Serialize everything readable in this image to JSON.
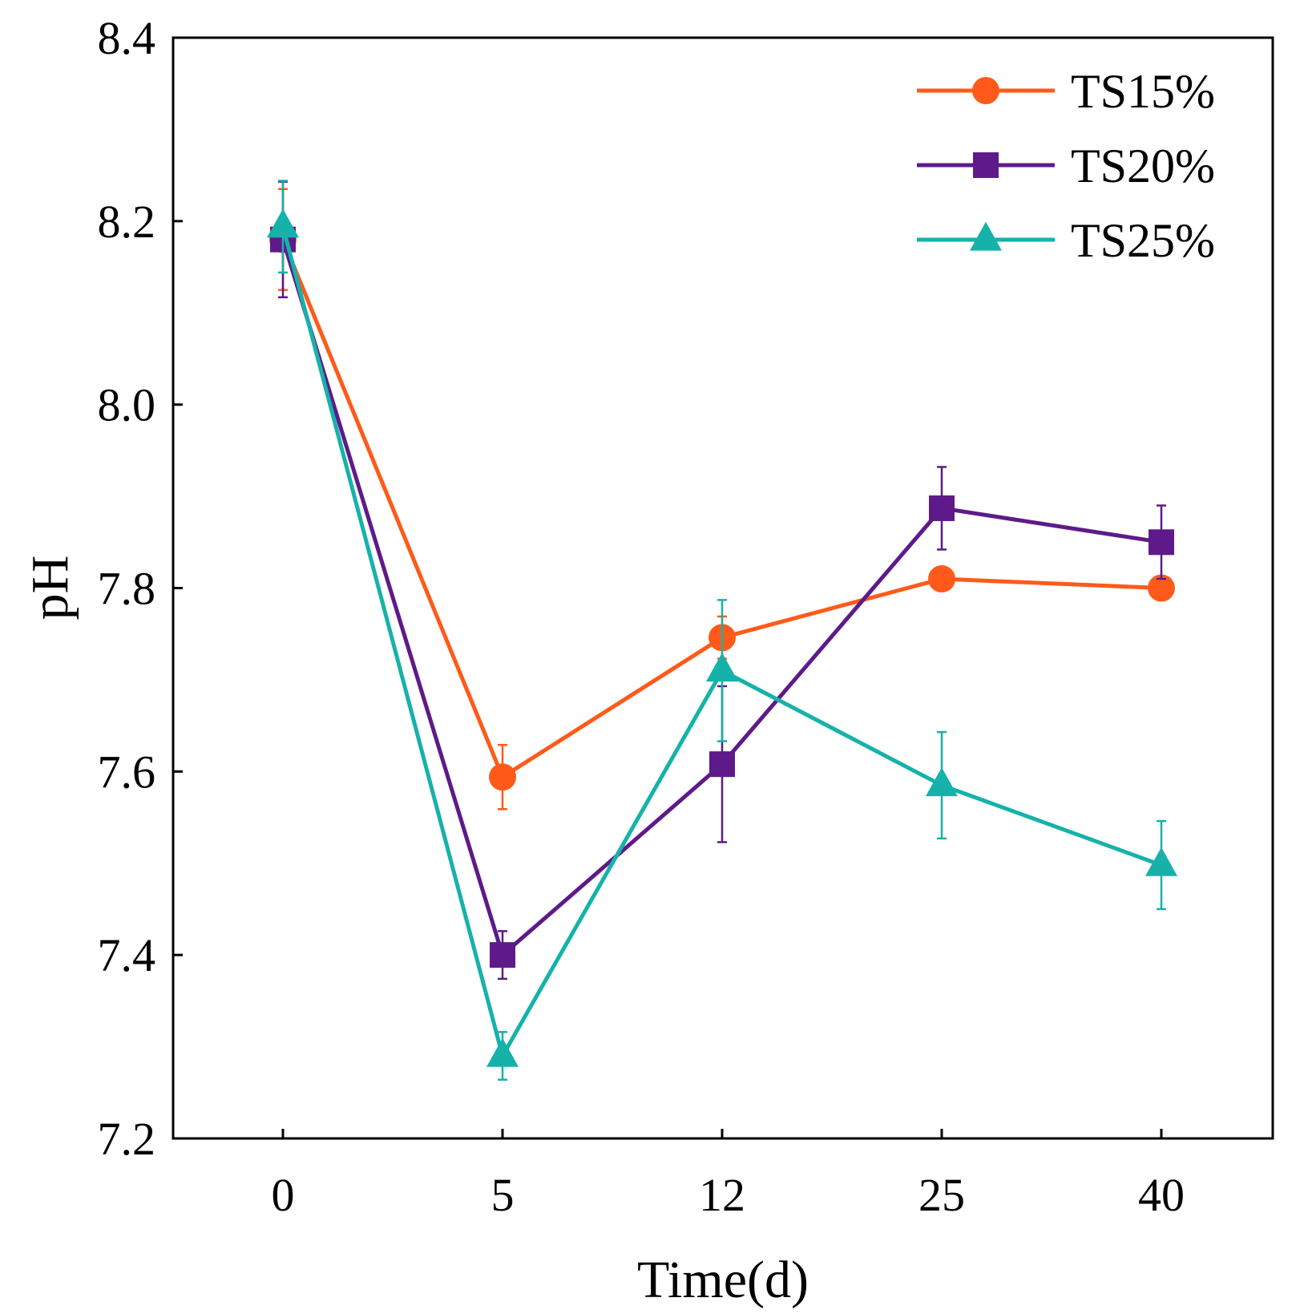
{
  "chart_data": {
    "type": "line",
    "title": "",
    "xlabel": "Time(d)",
    "ylabel": "pH",
    "categories": [
      "0",
      "5",
      "12",
      "25",
      "40"
    ],
    "yticks": [
      "7.2",
      "7.4",
      "7.6",
      "7.8",
      "8.0",
      "8.2",
      "8.4"
    ],
    "ylim": [
      7.2,
      8.4
    ],
    "grid": false,
    "legend_position": "top-right",
    "series": [
      {
        "name": "TS15%",
        "marker": "circle",
        "color": "#ff5a1a",
        "values": [
          8.18,
          7.594,
          7.746,
          7.81,
          7.8
        ],
        "errors": [
          0.055,
          0.035,
          0.023,
          0.01,
          0.01
        ]
      },
      {
        "name": "TS20%",
        "marker": "square",
        "color": "#5e1a8a",
        "values": [
          8.18,
          7.4,
          7.608,
          7.887,
          7.85
        ],
        "errors": [
          0.063,
          0.026,
          0.085,
          0.045,
          0.04
        ]
      },
      {
        "name": "TS25%",
        "marker": "triangle",
        "color": "#16b2aa",
        "values": [
          8.194,
          7.29,
          7.71,
          7.585,
          7.498
        ],
        "errors": [
          0.05,
          0.026,
          0.077,
          0.058,
          0.048
        ]
      }
    ]
  }
}
